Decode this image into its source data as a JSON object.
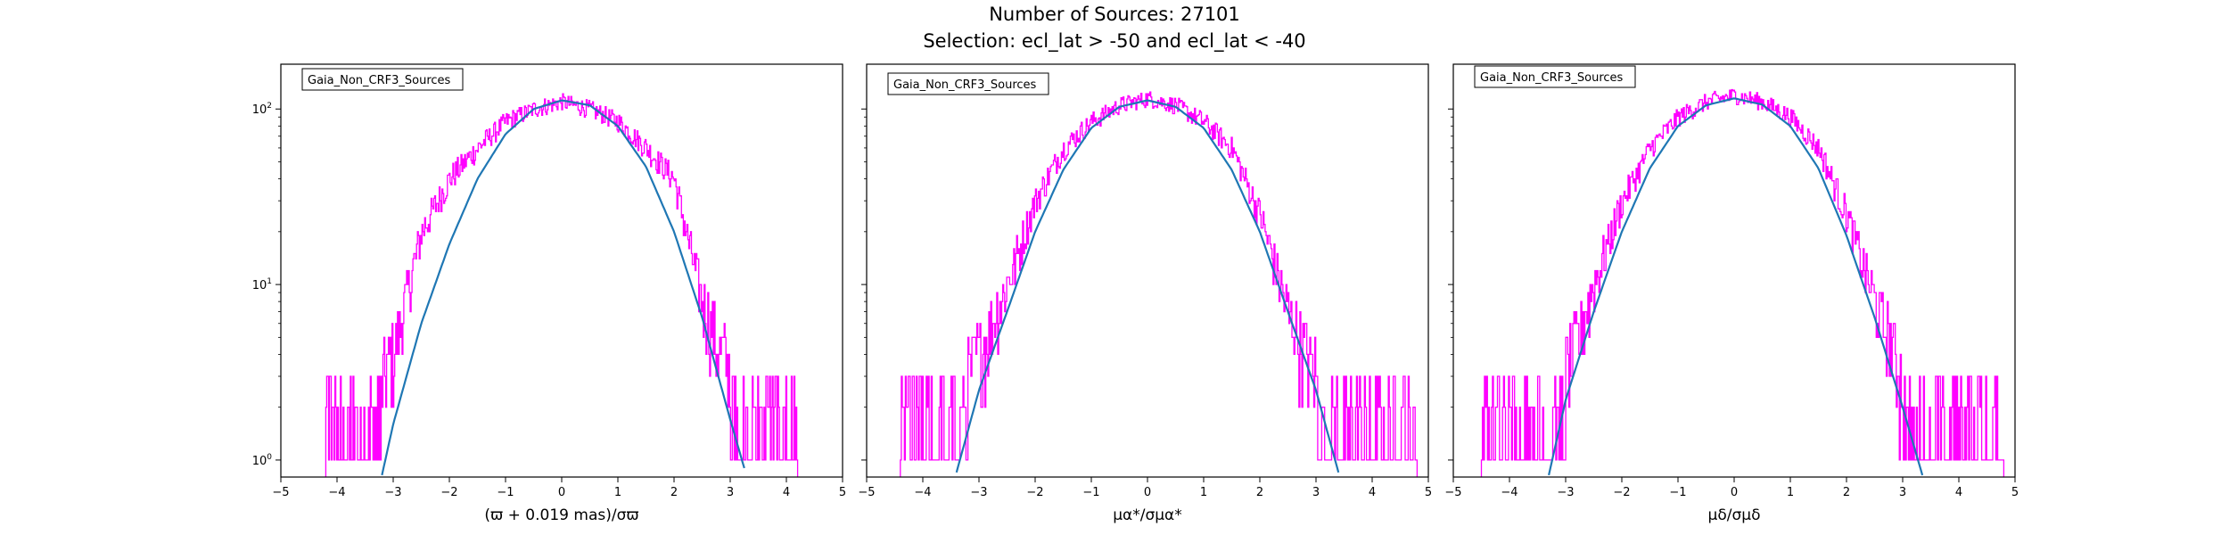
{
  "figure": {
    "title_line1": "Number of Sources: 27101",
    "title_line2": "Selection: ecl_lat > -50 and ecl_lat < -40"
  },
  "colors": {
    "histogram": "#ff00ff",
    "fit_line": "#1f77b4",
    "axes": "#000000",
    "background": "#ffffff"
  },
  "chart_data": [
    {
      "type": "line",
      "legend_label": "Gaia_Non_CRF3_Sources",
      "legend_position": "top-left",
      "xlabel": "(ϖ + 0.019 mas)/σϖ",
      "ylabel": "",
      "xlim": [
        -5,
        5
      ],
      "ylim": [
        0.8,
        180
      ],
      "yscale": "log",
      "grid": false,
      "x_ticks": [
        -5,
        -4,
        -3,
        -2,
        -1,
        0,
        1,
        2,
        3,
        4,
        5
      ],
      "y_ticks": [
        "10^0",
        "10^1",
        "10^2"
      ],
      "series": [
        {
          "kind": "histogram",
          "color": "#ff00ff",
          "x": [
            -4.2,
            -3.5,
            -3.0,
            -2.5,
            -2.0,
            -1.5,
            -1.0,
            -0.5,
            0.0,
            0.5,
            1.0,
            1.5,
            2.0,
            2.5,
            3.0,
            3.5,
            4.2
          ],
          "values": [
            1,
            2,
            4,
            20,
            40,
            60,
            85,
            100,
            110,
            100,
            85,
            60,
            40,
            8,
            3,
            1,
            1
          ]
        },
        {
          "kind": "fit",
          "color": "#1f77b4",
          "x": [
            -3.2,
            -3.0,
            -2.5,
            -2.0,
            -1.5,
            -1.0,
            -0.5,
            0.0,
            0.5,
            1.0,
            1.5,
            2.0,
            2.5,
            3.0,
            3.25
          ],
          "values": [
            0.82,
            1.6,
            6,
            17,
            40,
            72,
            100,
            112,
            105,
            80,
            47,
            20,
            6.5,
            1.7,
            0.9
          ]
        }
      ]
    },
    {
      "type": "line",
      "legend_label": "Gaia_Non_CRF3_Sources",
      "legend_position": "top-left",
      "xlabel": "μα*/σμα*",
      "ylabel": "",
      "xlim": [
        -5,
        5
      ],
      "ylim": [
        0.8,
        180
      ],
      "yscale": "log",
      "grid": false,
      "x_ticks": [
        -5,
        -4,
        -3,
        -2,
        -1,
        0,
        1,
        2,
        3,
        4,
        5
      ],
      "y_ticks": [
        "10^0",
        "10^1",
        "10^2"
      ],
      "series": [
        {
          "kind": "histogram",
          "color": "#ff00ff",
          "x": [
            -4.4,
            -3.5,
            -3.0,
            -2.5,
            -2.0,
            -1.5,
            -1.0,
            -0.5,
            0.0,
            0.5,
            1.0,
            1.5,
            2.0,
            2.5,
            3.0,
            3.5,
            4.8
          ],
          "values": [
            1,
            2,
            4,
            10,
            30,
            60,
            85,
            105,
            115,
            105,
            85,
            60,
            25,
            7,
            3,
            1,
            1
          ]
        },
        {
          "kind": "fit",
          "color": "#1f77b4",
          "x": [
            -3.4,
            -3.0,
            -2.5,
            -2.0,
            -1.5,
            -1.0,
            -0.5,
            0.0,
            0.5,
            1.0,
            1.5,
            2.0,
            2.5,
            3.0,
            3.4
          ],
          "values": [
            0.85,
            2.5,
            7,
            20,
            45,
            78,
            103,
            112,
            103,
            78,
            45,
            20,
            7,
            2.5,
            0.85
          ]
        }
      ]
    },
    {
      "type": "line",
      "legend_label": "Gaia_Non_CRF3_Sources",
      "legend_position": "top-left",
      "xlabel": "μδ/σμδ",
      "ylabel": "",
      "xlim": [
        -5,
        5
      ],
      "ylim": [
        0.8,
        180
      ],
      "yscale": "log",
      "grid": false,
      "x_ticks": [
        -5,
        -4,
        -3,
        -2,
        -1,
        0,
        1,
        2,
        3,
        4,
        5
      ],
      "y_ticks": [
        "10^0",
        "10^1",
        "10^2"
      ],
      "series": [
        {
          "kind": "histogram",
          "color": "#ff00ff",
          "x": [
            -4.5,
            -3.5,
            -3.0,
            -2.5,
            -2.0,
            -1.5,
            -1.0,
            -0.5,
            0.0,
            0.5,
            1.0,
            1.5,
            2.0,
            2.5,
            3.0,
            3.5,
            4.8
          ],
          "values": [
            1,
            2,
            3,
            10,
            30,
            60,
            90,
            110,
            120,
            110,
            90,
            60,
            25,
            8,
            3,
            1,
            1
          ]
        },
        {
          "kind": "fit",
          "color": "#1f77b4",
          "x": [
            -3.3,
            -3.0,
            -2.5,
            -2.0,
            -1.5,
            -1.0,
            -0.5,
            0.0,
            0.5,
            1.0,
            1.5,
            2.0,
            2.5,
            3.0,
            3.35
          ],
          "values": [
            0.82,
            2.2,
            7,
            20,
            46,
            80,
            105,
            115,
            106,
            80,
            46,
            19,
            6.5,
            2.0,
            0.82
          ]
        }
      ]
    }
  ]
}
